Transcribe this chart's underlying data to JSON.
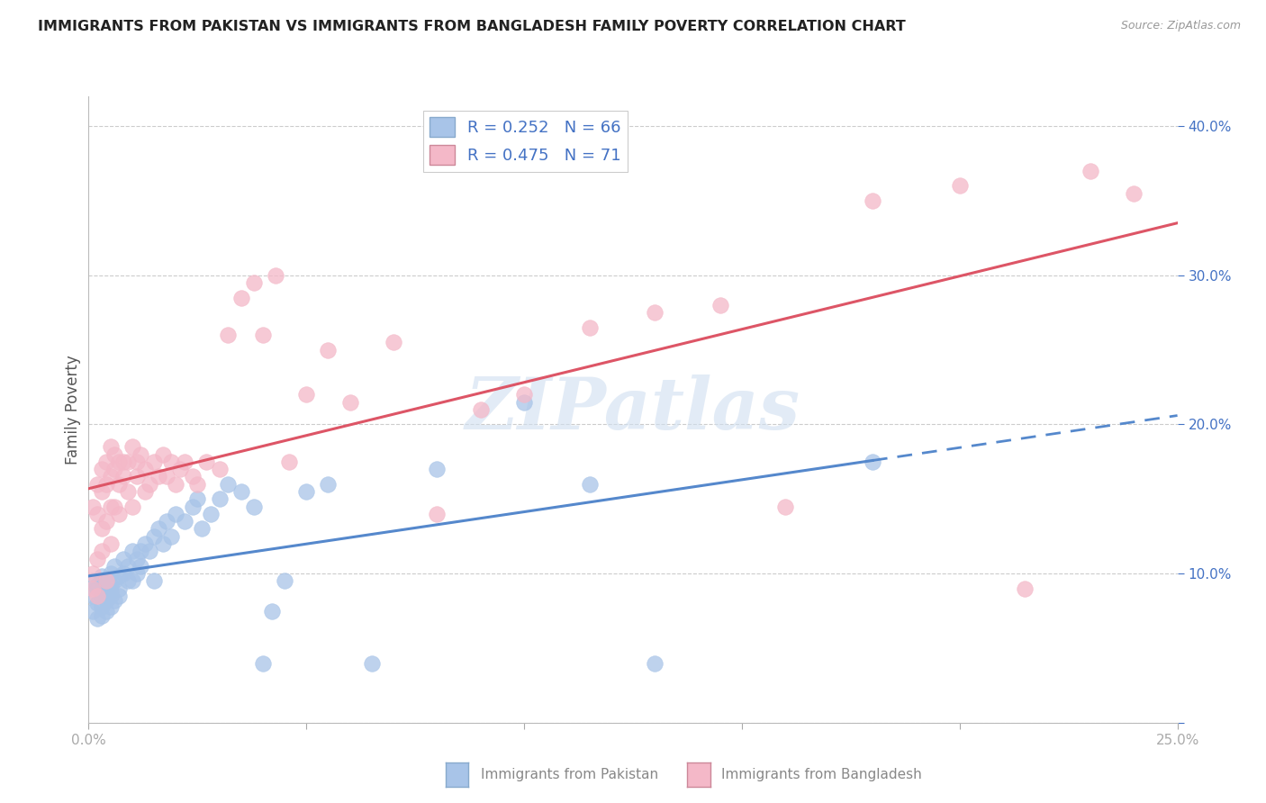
{
  "title": "IMMIGRANTS FROM PAKISTAN VS IMMIGRANTS FROM BANGLADESH FAMILY POVERTY CORRELATION CHART",
  "source": "Source: ZipAtlas.com",
  "ylabel": "Family Poverty",
  "pakistan_color": "#a8c4e8",
  "bangladesh_color": "#f4b8c8",
  "pakistan_line_color": "#5588cc",
  "bangladesh_line_color": "#dd5566",
  "watermark_color": "#d0dff0",
  "title_color": "#222222",
  "axis_label_color": "#4472c4",
  "grid_color": "#cccccc",
  "background_color": "#ffffff",
  "xlim": [
    0.0,
    0.25
  ],
  "ylim": [
    0.0,
    0.42
  ],
  "pakistan_scatter_x": [
    0.001,
    0.001,
    0.001,
    0.002,
    0.002,
    0.002,
    0.002,
    0.003,
    0.003,
    0.003,
    0.003,
    0.003,
    0.004,
    0.004,
    0.004,
    0.004,
    0.005,
    0.005,
    0.005,
    0.005,
    0.005,
    0.006,
    0.006,
    0.006,
    0.007,
    0.007,
    0.007,
    0.008,
    0.008,
    0.009,
    0.009,
    0.01,
    0.01,
    0.011,
    0.011,
    0.012,
    0.012,
    0.013,
    0.014,
    0.015,
    0.015,
    0.016,
    0.017,
    0.018,
    0.019,
    0.02,
    0.022,
    0.024,
    0.025,
    0.026,
    0.028,
    0.03,
    0.032,
    0.035,
    0.038,
    0.04,
    0.042,
    0.045,
    0.05,
    0.055,
    0.065,
    0.08,
    0.1,
    0.115,
    0.13,
    0.18
  ],
  "pakistan_scatter_y": [
    0.085,
    0.095,
    0.075,
    0.092,
    0.08,
    0.09,
    0.07,
    0.095,
    0.085,
    0.078,
    0.098,
    0.072,
    0.088,
    0.082,
    0.095,
    0.075,
    0.092,
    0.085,
    0.1,
    0.078,
    0.088,
    0.095,
    0.082,
    0.105,
    0.09,
    0.098,
    0.085,
    0.1,
    0.11,
    0.095,
    0.105,
    0.115,
    0.095,
    0.11,
    0.1,
    0.115,
    0.105,
    0.12,
    0.115,
    0.125,
    0.095,
    0.13,
    0.12,
    0.135,
    0.125,
    0.14,
    0.135,
    0.145,
    0.15,
    0.13,
    0.14,
    0.15,
    0.16,
    0.155,
    0.145,
    0.04,
    0.075,
    0.095,
    0.155,
    0.16,
    0.04,
    0.17,
    0.215,
    0.16,
    0.04,
    0.175
  ],
  "bangladesh_scatter_x": [
    0.001,
    0.001,
    0.001,
    0.002,
    0.002,
    0.002,
    0.002,
    0.003,
    0.003,
    0.003,
    0.003,
    0.004,
    0.004,
    0.004,
    0.004,
    0.005,
    0.005,
    0.005,
    0.005,
    0.006,
    0.006,
    0.006,
    0.007,
    0.007,
    0.007,
    0.008,
    0.008,
    0.009,
    0.009,
    0.01,
    0.01,
    0.011,
    0.011,
    0.012,
    0.013,
    0.013,
    0.014,
    0.015,
    0.016,
    0.017,
    0.018,
    0.019,
    0.02,
    0.021,
    0.022,
    0.024,
    0.025,
    0.027,
    0.03,
    0.032,
    0.035,
    0.038,
    0.04,
    0.043,
    0.046,
    0.05,
    0.055,
    0.06,
    0.07,
    0.08,
    0.09,
    0.1,
    0.115,
    0.13,
    0.145,
    0.16,
    0.18,
    0.2,
    0.215,
    0.23,
    0.24
  ],
  "bangladesh_scatter_y": [
    0.1,
    0.145,
    0.09,
    0.16,
    0.085,
    0.14,
    0.11,
    0.17,
    0.13,
    0.155,
    0.115,
    0.175,
    0.135,
    0.16,
    0.095,
    0.185,
    0.145,
    0.165,
    0.12,
    0.17,
    0.145,
    0.18,
    0.16,
    0.175,
    0.14,
    0.175,
    0.165,
    0.155,
    0.175,
    0.185,
    0.145,
    0.175,
    0.165,
    0.18,
    0.17,
    0.155,
    0.16,
    0.175,
    0.165,
    0.18,
    0.165,
    0.175,
    0.16,
    0.17,
    0.175,
    0.165,
    0.16,
    0.175,
    0.17,
    0.26,
    0.285,
    0.295,
    0.26,
    0.3,
    0.175,
    0.22,
    0.25,
    0.215,
    0.255,
    0.14,
    0.21,
    0.22,
    0.265,
    0.275,
    0.28,
    0.145,
    0.35,
    0.36,
    0.09,
    0.37,
    0.355
  ]
}
